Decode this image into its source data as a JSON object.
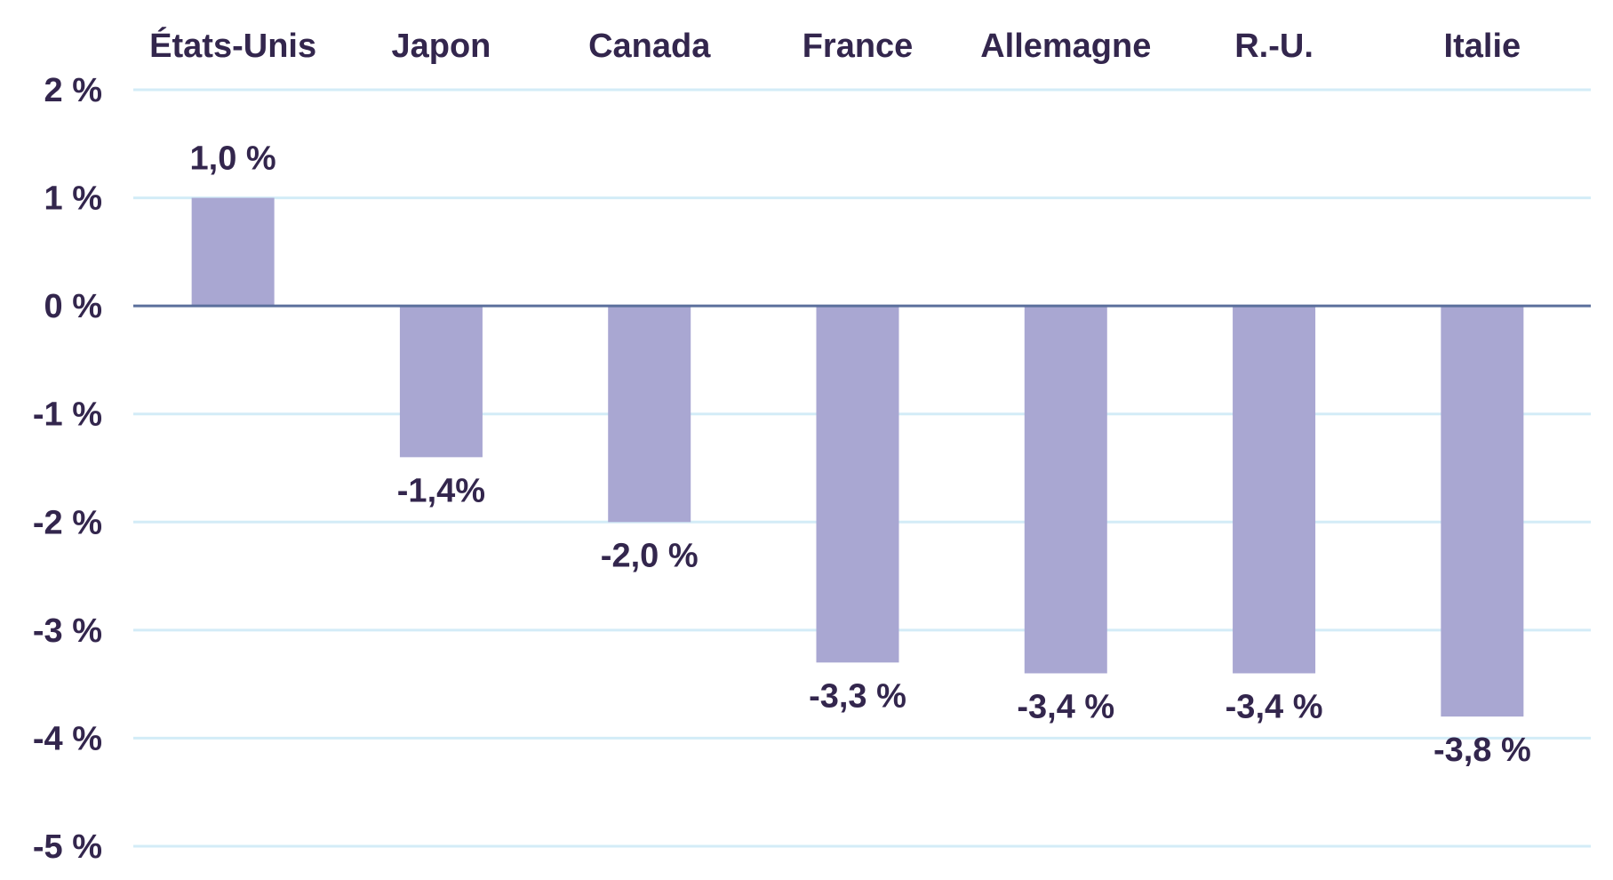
{
  "chart_data": {
    "type": "bar",
    "categories": [
      "États-Unis",
      "Japon",
      "Canada",
      "France",
      "Allemagne",
      "R.-U.",
      "Italie"
    ],
    "values": [
      1.0,
      -1.4,
      -2.0,
      -3.3,
      -3.4,
      -3.4,
      -3.8
    ],
    "data_labels": [
      "1,0 %",
      "-1,4%",
      "-2,0 %",
      "-3,3 %",
      "-3,4 %",
      "-3,4 %",
      "-3,8 %"
    ],
    "ylim": [
      -5,
      2
    ],
    "yticks": [
      2,
      1,
      0,
      -1,
      -2,
      -3,
      -4,
      -5
    ],
    "ytick_labels": [
      "2 %",
      "1 %",
      "0 %",
      "-1 %",
      "-2 %",
      "-3 %",
      "-4 %",
      "-5 %"
    ],
    "category_label_position": "top",
    "grid": true,
    "title": "",
    "xlabel": "",
    "ylabel": "",
    "colors": {
      "bar": "#a9a7d2",
      "grid": "#d3ecf7",
      "zero_line": "#5b6f9c",
      "text": "#33264d"
    }
  }
}
